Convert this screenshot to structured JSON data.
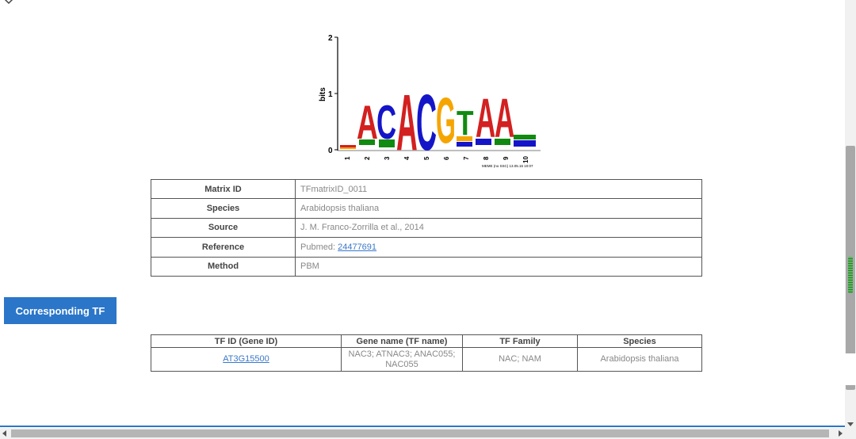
{
  "logo": {
    "y_axis_label": "bits",
    "y_ticks": [
      "2",
      "1",
      "0"
    ],
    "positions": [
      "1",
      "2",
      "3",
      "4",
      "5",
      "6",
      "7",
      "8",
      "9",
      "10"
    ],
    "consensus_letters": [
      "A",
      "C",
      "A",
      "C",
      "G",
      "T",
      "A",
      "A"
    ],
    "footer": "MEME (no SSC) 13.05.16 10:07",
    "colors": {
      "A": "#d32020",
      "C": "#1515c8",
      "G": "#f5a500",
      "T": "#118a11"
    }
  },
  "info_table": {
    "rows": [
      {
        "key": "Matrix ID",
        "value": "TFmatrixID_0011"
      },
      {
        "key": "Species",
        "value": "Arabidopsis thaliana"
      },
      {
        "key": "Source",
        "value": "J. M. Franco-Zorrilla et al., 2014"
      },
      {
        "key": "Reference",
        "value_prefix": "Pubmed: ",
        "link": "24477691"
      },
      {
        "key": "Method",
        "value": "PBM"
      }
    ]
  },
  "corresponding_tf_button": "Corresponding TF",
  "tf_table": {
    "headers": [
      "TF ID (Gene ID)",
      "Gene name (TF name)",
      "TF Family",
      "Species"
    ],
    "row": {
      "tf_id": "AT3G15500",
      "gene_name": "NAC3; ATNAC3; ANAC055; NAC055",
      "family": "NAC; NAM",
      "species": "Arabidopsis thaliana"
    }
  },
  "icons": {
    "collapse": "chevron-down-icon",
    "scroll_left": "arrow-left-icon",
    "scroll_right": "arrow-right-icon",
    "scroll_down": "arrow-down-icon"
  }
}
